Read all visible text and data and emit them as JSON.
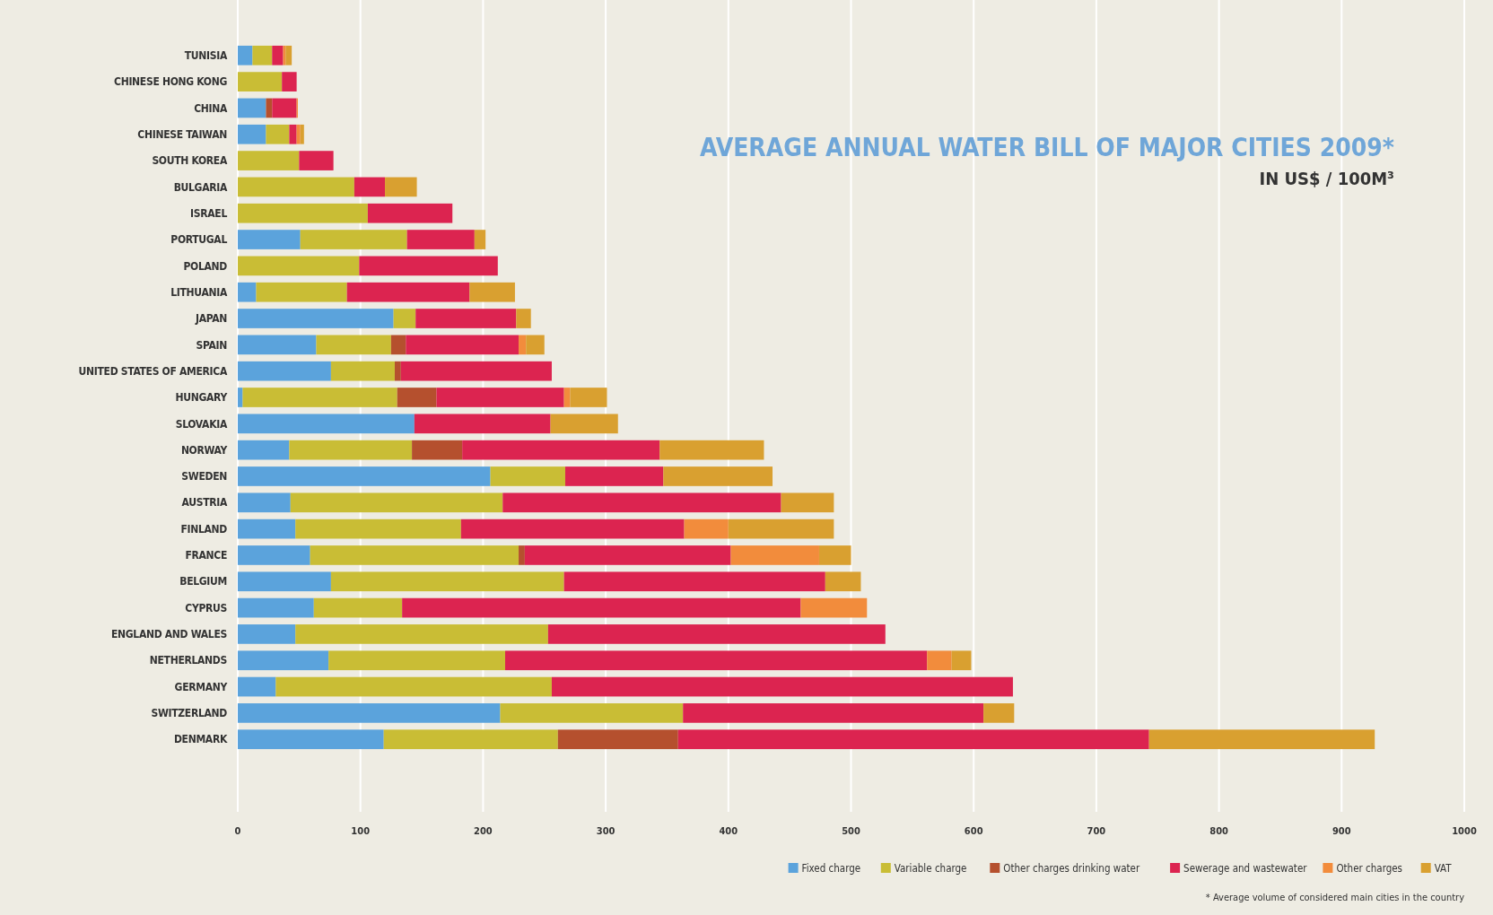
{
  "chart_data": {
    "type": "bar",
    "orientation": "horizontal",
    "stacked": true,
    "title": "AVERAGE ANNUAL WATER BILL OF MAJOR CITIES 2009*",
    "subtitle": "IN US$ / 100M³",
    "annotations": [
      "* Average volume of considered main cities in the country"
    ],
    "categories": [
      "TUNISIA",
      "CHINESE HONG KONG",
      "CHINA",
      "CHINESE TAIWAN",
      "SOUTH KOREA",
      "BULGARIA",
      "ISRAEL",
      "PORTUGAL",
      "POLAND",
      "LITHUANIA",
      "JAPAN",
      "SPAIN",
      "UNITED STATES OF AMERICA",
      "HUNGARY",
      "SLOVAKIA",
      "NORWAY",
      "SWEDEN",
      "AUSTRIA",
      "FINLAND",
      "FRANCE",
      "BELGIUM",
      "CYPRUS",
      "ENGLAND AND WALES",
      "NETHERLANDS",
      "GERMANY",
      "SWITZERLAND",
      "DENMARK"
    ],
    "series": [
      {
        "name": "Fixed charge",
        "color": "#5ba3dc",
        "values": [
          12,
          null,
          23,
          23,
          null,
          null,
          null,
          51,
          null,
          15,
          127,
          64,
          76,
          4,
          144,
          42,
          206,
          43,
          47,
          59,
          76,
          62,
          47,
          74,
          31,
          214,
          119
        ]
      },
      {
        "name": "Variable charge",
        "color": "#c9bd35",
        "values": [
          16,
          36,
          null,
          19,
          50,
          95,
          106,
          87,
          99,
          74,
          18,
          61,
          52,
          126,
          null,
          100,
          61,
          173,
          135,
          170,
          190,
          72,
          206,
          144,
          225,
          149,
          142
        ]
      },
      {
        "name": "Other charges drinking water",
        "color": "#b5502e",
        "values": [
          null,
          null,
          5,
          null,
          null,
          null,
          null,
          null,
          null,
          null,
          null,
          12,
          5,
          32,
          null,
          41,
          null,
          null,
          null,
          5,
          null,
          null,
          null,
          null,
          null,
          null,
          98
        ]
      },
      {
        "name": "Sewerage and wastewater",
        "color": "#dc2450",
        "values": [
          9,
          12,
          20,
          6,
          28,
          25,
          69,
          55,
          113,
          100,
          82,
          92,
          123,
          104,
          111,
          161,
          80,
          227,
          182,
          168,
          213,
          325,
          275,
          344,
          376,
          245,
          384
        ]
      },
      {
        "name": "Other charges",
        "color": "#f28c3c",
        "values": [
          2,
          null,
          1,
          3,
          null,
          null,
          null,
          null,
          null,
          null,
          null,
          6,
          null,
          5,
          null,
          null,
          null,
          null,
          36,
          72,
          null,
          54,
          null,
          20,
          null,
          null,
          null
        ]
      },
      {
        "name": "VAT",
        "color": "#d9a030",
        "values": [
          5,
          null,
          null,
          3,
          null,
          26,
          null,
          9,
          null,
          37,
          12,
          15,
          null,
          30,
          55,
          85,
          89,
          43,
          86,
          26,
          29,
          null,
          null,
          16,
          null,
          25,
          184
        ]
      }
    ],
    "xlim": [
      0,
      1000
    ],
    "xticks": [
      0,
      100,
      200,
      300,
      400,
      500,
      600,
      700,
      800,
      900,
      1000
    ],
    "grid": "x",
    "legend": "bottom right"
  }
}
